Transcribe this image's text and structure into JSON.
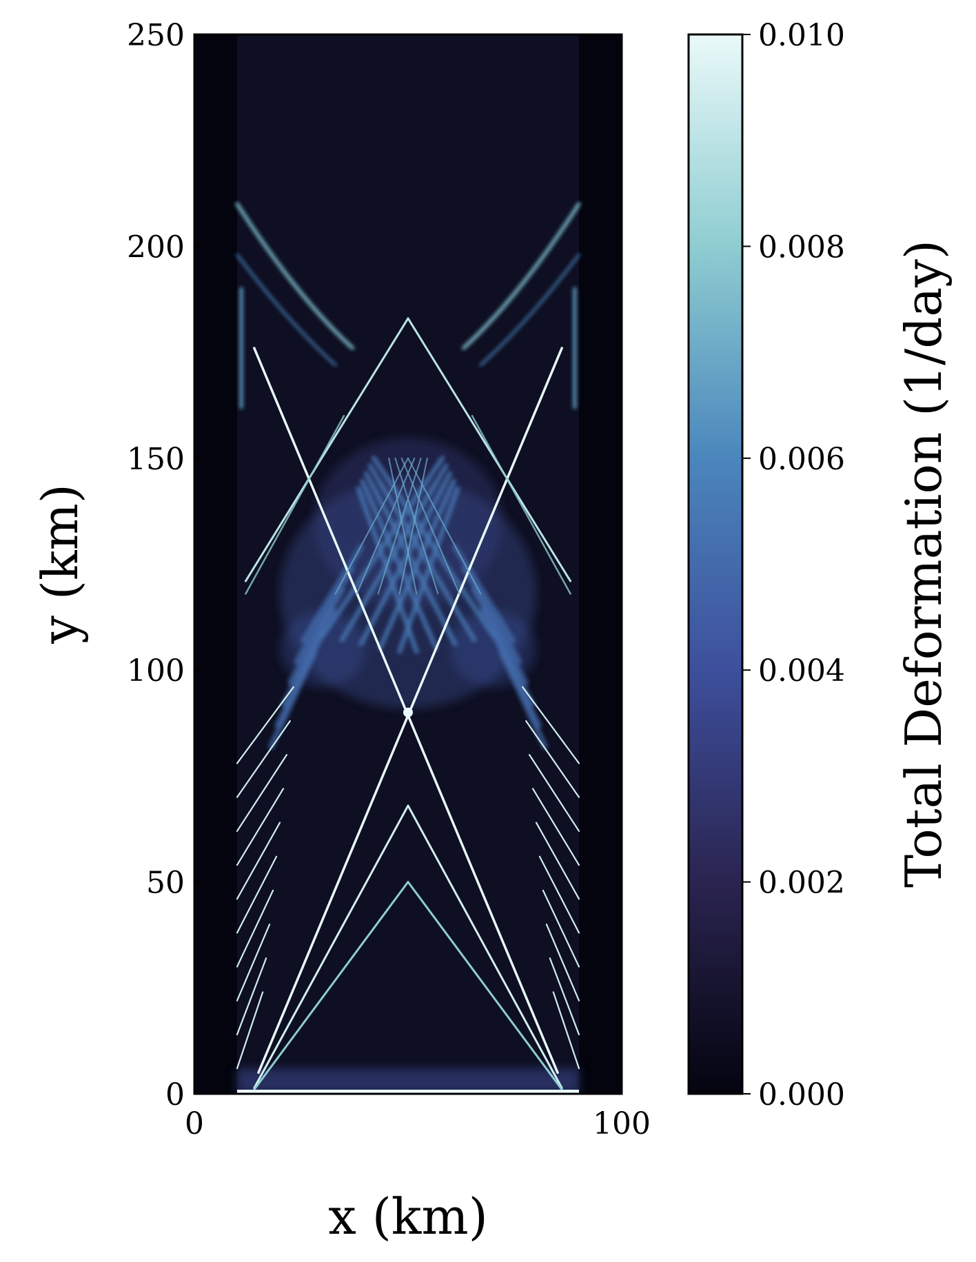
{
  "chart_data": {
    "type": "heatmap",
    "title": "",
    "xlabel": "x (km)",
    "ylabel": "y (km)",
    "xlim": [
      0,
      100
    ],
    "ylim": [
      0,
      250
    ],
    "x_ticks": [
      "0",
      "100"
    ],
    "y_ticks": [
      "0",
      "50",
      "100",
      "150",
      "200",
      "250"
    ],
    "grid": false,
    "domain_x_extent": [
      10,
      90
    ],
    "colorbar": {
      "label": "Total Deformation (1/day)",
      "range": [
        0.0,
        0.01
      ],
      "ticks": [
        "0.000",
        "0.002",
        "0.004",
        "0.006",
        "0.008",
        "0.010"
      ],
      "colormap": [
        "#04040f",
        "#2a2450",
        "#3d4f9c",
        "#4b86bc",
        "#8ecdd1",
        "#eaf9f9"
      ]
    },
    "features": {
      "primary_diagonal_x_crossing": {
        "x": 50,
        "y": 90
      },
      "upper_arch_apex": {
        "x": 50,
        "y": 183
      },
      "lower_arch_apexes": [
        {
          "x": 50,
          "y": 68
        },
        {
          "x": 50,
          "y": 50
        }
      ],
      "upper_corner_arcs_start_y": 210,
      "boundary_bands_y": [
        0,
        250
      ]
    }
  }
}
